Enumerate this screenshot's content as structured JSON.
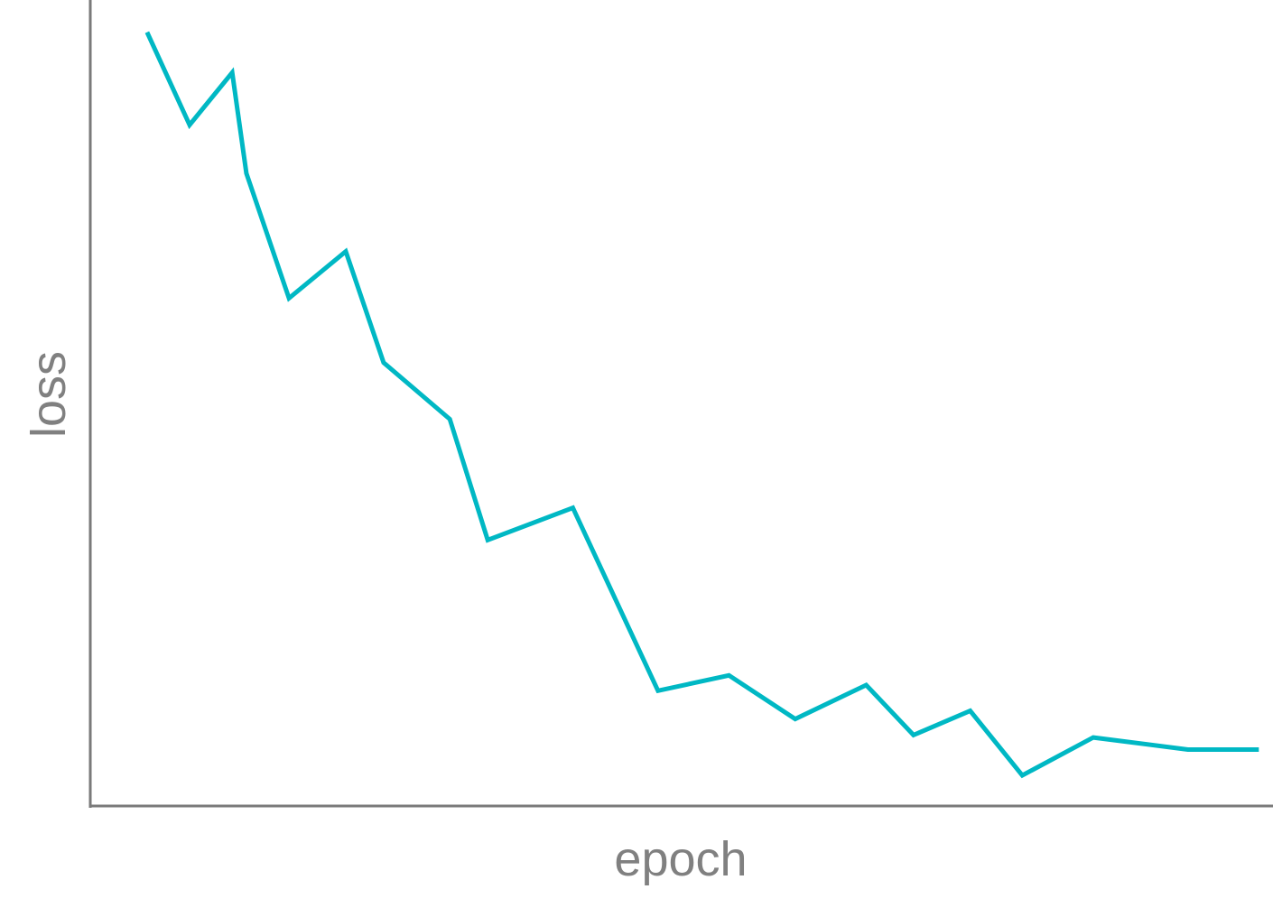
{
  "chart_data": {
    "type": "line",
    "title": "",
    "xlabel": "epoch",
    "ylabel": "loss",
    "grid": false,
    "legend": "none",
    "xlim": [
      0,
      25
    ],
    "ylim": [
      0,
      1
    ],
    "series": [
      {
        "color": "#00b8c4",
        "x": [
          1.2,
          2.1,
          3.0,
          3.3,
          4.2,
          5.4,
          6.2,
          7.6,
          8.4,
          10.2,
          12.0,
          13.5,
          14.9,
          16.4,
          17.4,
          18.6,
          19.7,
          21.2,
          23.2,
          24.7
        ],
        "y": [
          0.96,
          0.845,
          0.91,
          0.785,
          0.63,
          0.688,
          0.55,
          0.48,
          0.33,
          0.37,
          0.143,
          0.162,
          0.108,
          0.15,
          0.088,
          0.118,
          0.038,
          0.085,
          0.07,
          0.07
        ]
      }
    ]
  }
}
